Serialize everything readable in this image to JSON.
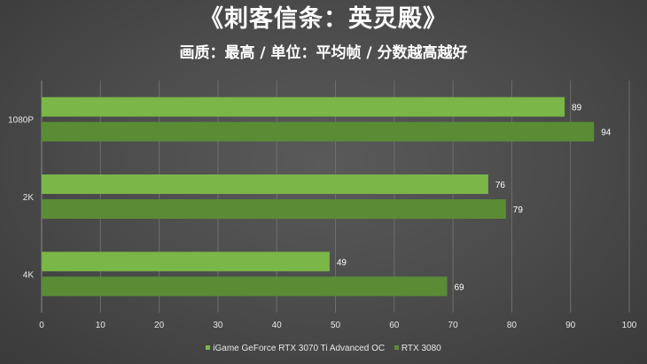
{
  "chart_data": {
    "type": "bar",
    "orientation": "horizontal",
    "title": "《刺客信条：英灵殿》",
    "subtitle": "画质：最高 / 单位：平均帧 / 分数越高越好",
    "categories": [
      "1080P",
      "2K",
      "4K"
    ],
    "series": [
      {
        "name": "iGame GeForce RTX 3070 Ti Advanced OC",
        "values": [
          89,
          76,
          49
        ],
        "color": "#7ab648"
      },
      {
        "name": "RTX 3080",
        "values": [
          94,
          79,
          69
        ],
        "color": "#5a8c36"
      }
    ],
    "xlim": [
      0,
      100
    ],
    "x_ticks": [
      "0",
      "10",
      "20",
      "30",
      "40",
      "50",
      "60",
      "70",
      "80",
      "90",
      "100"
    ],
    "grid": true,
    "legend_position": "bottom",
    "data_labels": true
  }
}
